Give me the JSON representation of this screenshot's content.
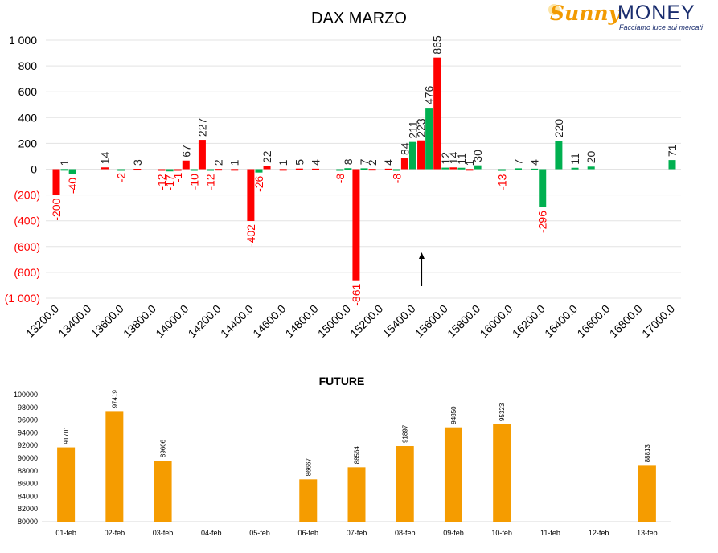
{
  "logo": {
    "brand_part1": "Sunny",
    "brand_part2": "MONEY",
    "tagline": "Facciamo luce sui mercati"
  },
  "colors": {
    "positive": "#00b050",
    "negative": "#ff0000",
    "future": "#f59c00"
  },
  "chart_data": [
    {
      "type": "bar",
      "title": "DAX MARZO",
      "ylim": [
        -1000,
        1000
      ],
      "ytick_values": [
        1000,
        800,
        600,
        400,
        200,
        0,
        -200,
        -400,
        -600,
        -800,
        -1000
      ],
      "ytick_labels": [
        "1 000",
        "800",
        "600",
        "400",
        "200",
        "0",
        "(200)",
        "(400)",
        "(600)",
        "(800)",
        "(1 000)"
      ],
      "xtick_labels": [
        "13200.0",
        "13400.0",
        "13600.0",
        "13800.0",
        "14000.0",
        "14200.0",
        "14400.0",
        "14600.0",
        "14800.0",
        "15000.0",
        "15200.0",
        "15400.0",
        "15600.0",
        "15800.0",
        "16000.0",
        "16200.0",
        "16400.0",
        "16600.0",
        "16800.0",
        "17000.0"
      ],
      "grid": true,
      "annotation": "arrow pointing up at 15400",
      "bars": [
        {
          "x": 13200,
          "value": -200,
          "label": "-200",
          "color": "red"
        },
        {
          "x": 13250,
          "value": 1,
          "label": "1",
          "color": "green"
        },
        {
          "x": 13300,
          "value": -40,
          "label": "-40",
          "color": "green"
        },
        {
          "x": 13500,
          "value": 14,
          "label": "14",
          "color": "red"
        },
        {
          "x": 13600,
          "value": -2,
          "label": "-2",
          "color": "green"
        },
        {
          "x": 13700,
          "value": 3,
          "label": "3",
          "color": "red"
        },
        {
          "x": 13850,
          "value": -12,
          "label": "-12",
          "color": "red"
        },
        {
          "x": 13900,
          "value": -17,
          "label": "-17",
          "color": "green"
        },
        {
          "x": 13950,
          "value": -1,
          "label": "-1",
          "color": "red"
        },
        {
          "x": 14000,
          "value": 67,
          "label": "67",
          "color": "red"
        },
        {
          "x": 14050,
          "value": -10,
          "label": "-10",
          "color": "green"
        },
        {
          "x": 14100,
          "value": 227,
          "label": "227",
          "color": "red"
        },
        {
          "x": 14150,
          "value": -12,
          "label": "-12",
          "color": "green"
        },
        {
          "x": 14200,
          "value": 2,
          "label": "2",
          "color": "red"
        },
        {
          "x": 14300,
          "value": 1,
          "label": "1",
          "color": "red"
        },
        {
          "x": 14400,
          "value": -402,
          "label": "-402",
          "color": "red"
        },
        {
          "x": 14450,
          "value": -26,
          "label": "-26",
          "color": "green"
        },
        {
          "x": 14500,
          "value": 22,
          "label": "22",
          "color": "red"
        },
        {
          "x": 14600,
          "value": 1,
          "label": "1",
          "color": "red"
        },
        {
          "x": 14700,
          "value": 5,
          "label": "5",
          "color": "red"
        },
        {
          "x": 14800,
          "value": 4,
          "label": "4",
          "color": "red"
        },
        {
          "x": 14950,
          "value": -8,
          "label": "-8",
          "color": "green"
        },
        {
          "x": 15000,
          "value": 8,
          "label": "8",
          "color": "green"
        },
        {
          "x": 15050,
          "value": -861,
          "label": "-861",
          "color": "red"
        },
        {
          "x": 15100,
          "value": 7,
          "label": "7",
          "color": "green"
        },
        {
          "x": 15150,
          "value": 2,
          "label": "2",
          "color": "red"
        },
        {
          "x": 15250,
          "value": 4,
          "label": "4",
          "color": "red"
        },
        {
          "x": 15300,
          "value": -8,
          "label": "-8",
          "color": "green"
        },
        {
          "x": 15350,
          "value": 84,
          "label": "84",
          "color": "red"
        },
        {
          "x": 15400,
          "value": 211,
          "label": "211",
          "color": "green"
        },
        {
          "x": 15450,
          "value": 223,
          "label": "223",
          "color": "red"
        },
        {
          "x": 15500,
          "value": 476,
          "label": "476",
          "color": "green"
        },
        {
          "x": 15550,
          "value": 865,
          "label": "865",
          "color": "red"
        },
        {
          "x": 15600,
          "value": 12,
          "label": "12",
          "color": "green"
        },
        {
          "x": 15650,
          "value": 14,
          "label": "14",
          "color": "red"
        },
        {
          "x": 15700,
          "value": 11,
          "label": "11",
          "color": "green"
        },
        {
          "x": 15750,
          "value": 1,
          "label": "1",
          "color": "red"
        },
        {
          "x": 15800,
          "value": 30,
          "label": "30",
          "color": "green"
        },
        {
          "x": 15950,
          "value": -13,
          "label": "-13",
          "color": "green"
        },
        {
          "x": 16050,
          "value": 7,
          "label": "7",
          "color": "green"
        },
        {
          "x": 16150,
          "value": 4,
          "label": "4",
          "color": "green"
        },
        {
          "x": 16200,
          "value": -296,
          "label": "-296",
          "color": "green"
        },
        {
          "x": 16300,
          "value": 220,
          "label": "220",
          "color": "green"
        },
        {
          "x": 16400,
          "value": 11,
          "label": "11",
          "color": "green"
        },
        {
          "x": 16500,
          "value": 20,
          "label": "20",
          "color": "green"
        },
        {
          "x": 17000,
          "value": 71,
          "label": "71",
          "color": "green"
        }
      ]
    },
    {
      "type": "bar",
      "title": "FUTURE",
      "ylim": [
        80000,
        100000
      ],
      "ytick_values": [
        80000,
        82000,
        84000,
        86000,
        88000,
        90000,
        92000,
        94000,
        96000,
        98000,
        100000
      ],
      "ytick_labels": [
        "80000",
        "82000",
        "84000",
        "86000",
        "88000",
        "90000",
        "92000",
        "94000",
        "96000",
        "98000",
        "100000"
      ],
      "categories": [
        "01-feb",
        "02-feb",
        "03-feb",
        "04-feb",
        "05-feb",
        "06-feb",
        "07-feb",
        "08-feb",
        "09-feb",
        "10-feb",
        "11-feb",
        "12-feb",
        "13-feb"
      ],
      "values": [
        91701,
        97419,
        89606,
        null,
        null,
        86667,
        88564,
        91897,
        94850,
        95323,
        null,
        null,
        88813
      ],
      "value_labels": [
        "91701",
        "97419",
        "89606",
        "",
        "",
        "86667",
        "88564",
        "91897",
        "94850",
        "95323",
        "",
        "",
        "88813"
      ],
      "grid": false
    }
  ]
}
